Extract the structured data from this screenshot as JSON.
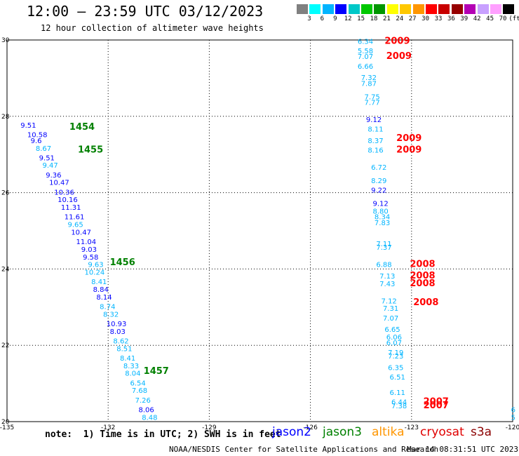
{
  "header": {
    "title": "12:00 – 23:59 UTC 03/12/2023",
    "subtitle": "12 hour collection of altimeter wave heights"
  },
  "legend": {
    "colors": [
      "#808080",
      "#00ffff",
      "#00b4ff",
      "#0000ff",
      "#00c8c8",
      "#00c800",
      "#009600",
      "#ffff00",
      "#ffc800",
      "#ff9600",
      "#ff0000",
      "#c80000",
      "#960000",
      "#b400b4",
      "#c8a0ff",
      "#ffa0ff",
      "#000000"
    ],
    "labels": [
      "3",
      "6",
      "9",
      "12",
      "15",
      "18",
      "21",
      "24",
      "27",
      "30",
      "33",
      "36",
      "39",
      "42",
      "45",
      "70",
      "(ft)"
    ]
  },
  "axes": {
    "x_ticks": [
      "-135",
      "-132",
      "-129",
      "-126",
      "-123",
      "-120"
    ],
    "y_ticks": [
      "30",
      "28",
      "26",
      "24",
      "22",
      "20"
    ],
    "lon_range": [
      -135,
      -120
    ],
    "lat_range": [
      20,
      30
    ]
  },
  "footer": {
    "note": "note:  1) Time is in UTC; 2) SWH is in feet",
    "missions": [
      {
        "name": "jason2",
        "color": "#0000ff"
      },
      {
        "name": "jason3",
        "color": "#008000"
      },
      {
        "name": "altika",
        "color": "#ff9600"
      },
      {
        "name": "cryosat",
        "color": "#e00000"
      },
      {
        "name": "s3a",
        "color": "#8b0000"
      }
    ],
    "credit": "NOAA/NESDIS Center for Satellite Applications and Research",
    "timestamp": "Mar 14 08:31:51 UTC 2023"
  },
  "tracks": {
    "west": {
      "labels": [
        {
          "text": "1454",
          "lon": -133.15,
          "lat": 27.65,
          "color": "#008000"
        },
        {
          "text": "1455",
          "lon": -132.9,
          "lat": 27.05,
          "color": "#008000"
        },
        {
          "text": "1456",
          "lon": -131.95,
          "lat": 24.1,
          "color": "#008000"
        },
        {
          "text": "1457",
          "lon": -130.95,
          "lat": 21.25,
          "color": "#008000"
        }
      ],
      "points": [
        {
          "v": "9.51",
          "lon": -134.6,
          "lat": 27.7,
          "c": "#0000ff"
        },
        {
          "v": "10.58",
          "lon": -134.4,
          "lat": 27.45,
          "c": "#0000ff"
        },
        {
          "v": "9.6",
          "lon": -134.3,
          "lat": 27.3,
          "c": "#0000ff"
        },
        {
          "v": "8.67",
          "lon": -134.15,
          "lat": 27.1,
          "c": "#00b4ff"
        },
        {
          "v": "9.51",
          "lon": -134.05,
          "lat": 26.85,
          "c": "#0000ff"
        },
        {
          "v": "9.47",
          "lon": -133.95,
          "lat": 26.65,
          "c": "#00b4ff"
        },
        {
          "v": "9.36",
          "lon": -133.85,
          "lat": 26.4,
          "c": "#0000ff"
        },
        {
          "v": "10.47",
          "lon": -133.75,
          "lat": 26.2,
          "c": "#0000ff"
        },
        {
          "v": "10.36",
          "lon": -133.6,
          "lat": 25.95,
          "c": "#0000ff"
        },
        {
          "v": "10.16",
          "lon": -133.5,
          "lat": 25.75,
          "c": "#0000ff"
        },
        {
          "v": "11.31",
          "lon": -133.4,
          "lat": 25.55,
          "c": "#0000ff"
        },
        {
          "v": "11.61",
          "lon": -133.3,
          "lat": 25.3,
          "c": "#0000ff"
        },
        {
          "v": "9.65",
          "lon": -133.2,
          "lat": 25.1,
          "c": "#00b4ff"
        },
        {
          "v": "10.47",
          "lon": -133.1,
          "lat": 24.9,
          "c": "#0000ff"
        },
        {
          "v": "11.04",
          "lon": -132.95,
          "lat": 24.65,
          "c": "#0000ff"
        },
        {
          "v": "9.03",
          "lon": -132.8,
          "lat": 24.45,
          "c": "#0000ff"
        },
        {
          "v": "9.58",
          "lon": -132.75,
          "lat": 24.25,
          "c": "#0000ff"
        },
        {
          "v": "9.63",
          "lon": -132.6,
          "lat": 24.05,
          "c": "#00b4ff"
        },
        {
          "v": "10.24",
          "lon": -132.7,
          "lat": 23.85,
          "c": "#00b4ff"
        },
        {
          "v": "8.41",
          "lon": -132.5,
          "lat": 23.6,
          "c": "#00b4ff"
        },
        {
          "v": "8.84",
          "lon": -132.45,
          "lat": 23.4,
          "c": "#0000ff"
        },
        {
          "v": "8.14",
          "lon": -132.35,
          "lat": 23.2,
          "c": "#0000ff"
        },
        {
          "v": "8.74",
          "lon": -132.25,
          "lat": 22.95,
          "c": "#00b4ff"
        },
        {
          "v": "8.32",
          "lon": -132.15,
          "lat": 22.75,
          "c": "#00b4ff"
        },
        {
          "v": "10.93",
          "lon": -132.05,
          "lat": 22.5,
          "c": "#0000ff"
        },
        {
          "v": "8.03",
          "lon": -131.95,
          "lat": 22.3,
          "c": "#0000ff"
        },
        {
          "v": "8.62",
          "lon": -131.85,
          "lat": 22.05,
          "c": "#00b4ff"
        },
        {
          "v": "8.51",
          "lon": -131.75,
          "lat": 21.85,
          "c": "#00b4ff"
        },
        {
          "v": "8.41",
          "lon": -131.65,
          "lat": 21.6,
          "c": "#00b4ff"
        },
        {
          "v": "8.33",
          "lon": -131.55,
          "lat": 21.4,
          "c": "#00b4ff"
        },
        {
          "v": "8.04",
          "lon": -131.5,
          "lat": 21.2,
          "c": "#00b4ff"
        },
        {
          "v": "6.54",
          "lon": -131.35,
          "lat": 20.95,
          "c": "#00b4ff"
        },
        {
          "v": "7.68",
          "lon": -131.3,
          "lat": 20.75,
          "c": "#00b4ff"
        },
        {
          "v": "7.26",
          "lon": -131.2,
          "lat": 20.5,
          "c": "#00b4ff"
        },
        {
          "v": "8.06",
          "lon": -131.1,
          "lat": 20.25,
          "c": "#0000ff"
        },
        {
          "v": "8.48",
          "lon": -131.0,
          "lat": 20.05,
          "c": "#00b4ff"
        }
      ]
    },
    "east": {
      "labels": [
        {
          "text": "2009",
          "lon": -123.8,
          "lat": 29.9,
          "color": "#ff0000"
        },
        {
          "text": "2009",
          "lon": -123.75,
          "lat": 29.5,
          "color": "#ff0000"
        },
        {
          "text": "2009",
          "lon": -123.45,
          "lat": 27.35,
          "color": "#ff0000"
        },
        {
          "text": "2009",
          "lon": -123.45,
          "lat": 27.05,
          "color": "#ff0000"
        },
        {
          "text": "2008",
          "lon": -123.05,
          "lat": 24.05,
          "color": "#ff0000"
        },
        {
          "text": "2008",
          "lon": -123.05,
          "lat": 23.75,
          "color": "#ff0000"
        },
        {
          "text": "2008",
          "lon": -123.05,
          "lat": 23.55,
          "color": "#ff0000"
        },
        {
          "text": "2008",
          "lon": -122.95,
          "lat": 23.05,
          "color": "#ff0000"
        },
        {
          "text": "2007",
          "lon": -122.65,
          "lat": 20.45,
          "color": "#ff0000"
        },
        {
          "text": "2007",
          "lon": -122.65,
          "lat": 20.35,
          "color": "#ff0000"
        }
      ],
      "points": [
        {
          "v": "6.34",
          "lon": -124.6,
          "lat": 29.9,
          "c": "#00b4ff"
        },
        {
          "v": "5.58",
          "lon": -124.6,
          "lat": 29.65,
          "c": "#00b4ff"
        },
        {
          "v": "7.07",
          "lon": -124.6,
          "lat": 29.5,
          "c": "#00b4ff"
        },
        {
          "v": "6.66",
          "lon": -124.6,
          "lat": 29.25,
          "c": "#00b4ff"
        },
        {
          "v": "7.32",
          "lon": -124.5,
          "lat": 28.95,
          "c": "#00b4ff"
        },
        {
          "v": "7.87",
          "lon": -124.5,
          "lat": 28.8,
          "c": "#00b4ff"
        },
        {
          "v": "7.75",
          "lon": -124.4,
          "lat": 28.45,
          "c": "#00b4ff"
        },
        {
          "v": "7.77",
          "lon": -124.4,
          "lat": 28.3,
          "c": "#00b4ff"
        },
        {
          "v": "9.12",
          "lon": -124.35,
          "lat": 27.85,
          "c": "#0000ff"
        },
        {
          "v": "8.11",
          "lon": -124.3,
          "lat": 27.6,
          "c": "#00b4ff"
        },
        {
          "v": "8.37",
          "lon": -124.3,
          "lat": 27.3,
          "c": "#00b4ff"
        },
        {
          "v": "8.16",
          "lon": -124.3,
          "lat": 27.05,
          "c": "#00b4ff"
        },
        {
          "v": "6.72",
          "lon": -124.2,
          "lat": 26.6,
          "c": "#00b4ff"
        },
        {
          "v": "8.29",
          "lon": -124.2,
          "lat": 26.25,
          "c": "#00b4ff"
        },
        {
          "v": "9.22",
          "lon": -124.2,
          "lat": 26.0,
          "c": "#0000ff"
        },
        {
          "v": "9.12",
          "lon": -124.15,
          "lat": 25.65,
          "c": "#0000ff"
        },
        {
          "v": "8.80",
          "lon": -124.15,
          "lat": 25.45,
          "c": "#00b4ff"
        },
        {
          "v": "8.34",
          "lon": -124.1,
          "lat": 25.3,
          "c": "#00b4ff"
        },
        {
          "v": "7.83",
          "lon": -124.1,
          "lat": 25.15,
          "c": "#00b4ff"
        },
        {
          "v": "7.11",
          "lon": -124.05,
          "lat": 24.6,
          "c": "#00b4ff"
        },
        {
          "v": "7.37",
          "lon": -124.05,
          "lat": 24.5,
          "c": "#00b4ff"
        },
        {
          "v": "6.88",
          "lon": -124.05,
          "lat": 24.05,
          "c": "#00b4ff"
        },
        {
          "v": "7.13",
          "lon": -123.95,
          "lat": 23.75,
          "c": "#00b4ff"
        },
        {
          "v": "7.43",
          "lon": -123.95,
          "lat": 23.55,
          "c": "#00b4ff"
        },
        {
          "v": "7.12",
          "lon": -123.9,
          "lat": 23.1,
          "c": "#00b4ff"
        },
        {
          "v": "7.31",
          "lon": -123.85,
          "lat": 22.9,
          "c": "#00b4ff"
        },
        {
          "v": "7.07",
          "lon": -123.85,
          "lat": 22.65,
          "c": "#00b4ff"
        },
        {
          "v": "6.65",
          "lon": -123.8,
          "lat": 22.35,
          "c": "#00b4ff"
        },
        {
          "v": "6.06",
          "lon": -123.75,
          "lat": 22.15,
          "c": "#00b4ff"
        },
        {
          "v": "6.07",
          "lon": -123.75,
          "lat": 22.0,
          "c": "#00b4ff"
        },
        {
          "v": "7.19",
          "lon": -123.7,
          "lat": 21.75,
          "c": "#00b4ff"
        },
        {
          "v": "7.23",
          "lon": -123.7,
          "lat": 21.65,
          "c": "#00b4ff"
        },
        {
          "v": "6.35",
          "lon": -123.7,
          "lat": 21.35,
          "c": "#00b4ff"
        },
        {
          "v": "6.51",
          "lon": -123.65,
          "lat": 21.1,
          "c": "#00b4ff"
        },
        {
          "v": "6.11",
          "lon": -123.65,
          "lat": 20.7,
          "c": "#00b4ff"
        },
        {
          "v": "6.44",
          "lon": -123.6,
          "lat": 20.45,
          "c": "#00b4ff"
        },
        {
          "v": "7.38",
          "lon": -123.6,
          "lat": 20.35,
          "c": "#00b4ff"
        },
        {
          "v": "6",
          "lon": -120.05,
          "lat": 20.25,
          "c": "#00b4ff"
        },
        {
          "v": "5",
          "lon": -120.05,
          "lat": 20.05,
          "c": "#00b4ff"
        }
      ]
    }
  }
}
